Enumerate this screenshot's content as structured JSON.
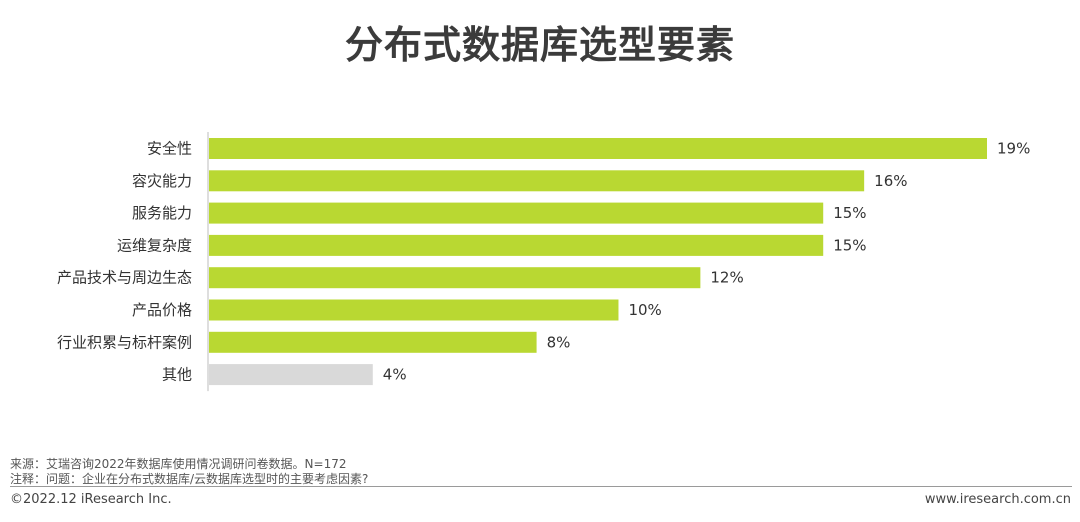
{
  "title": "分布式数据库选型要素",
  "chart_data": {
    "type": "bar",
    "orientation": "horizontal",
    "title": "分布式数据库选型要素",
    "categories": [
      "安全性",
      "容灾能力",
      "服务能力",
      "运维复杂度",
      "产品技术与周边生态",
      "产品价格",
      "行业积累与标杆案例",
      "其他"
    ],
    "values": [
      19,
      16,
      15,
      15,
      12,
      10,
      8,
      4
    ],
    "value_labels": [
      "19%",
      "16%",
      "15%",
      "15%",
      "12%",
      "10%",
      "8%",
      "4%"
    ],
    "unit": "%",
    "xlim": [
      0,
      19
    ],
    "colors": [
      "#b9d832",
      "#b9d832",
      "#b9d832",
      "#b9d832",
      "#b9d832",
      "#b9d832",
      "#b9d832",
      "#d9d9d9"
    ],
    "grid": false,
    "legend": "none"
  },
  "notes": {
    "source": "来源：艾瑞咨询2022年数据库使用情况调研问卷数据。N=172",
    "note": "注释：问题：企业在分布式数据库/云数据库选型时的主要考虑因素?"
  },
  "footer": {
    "copyright": "©2022.12 iResearch Inc.",
    "website": "www.iresearch.com.cn"
  }
}
